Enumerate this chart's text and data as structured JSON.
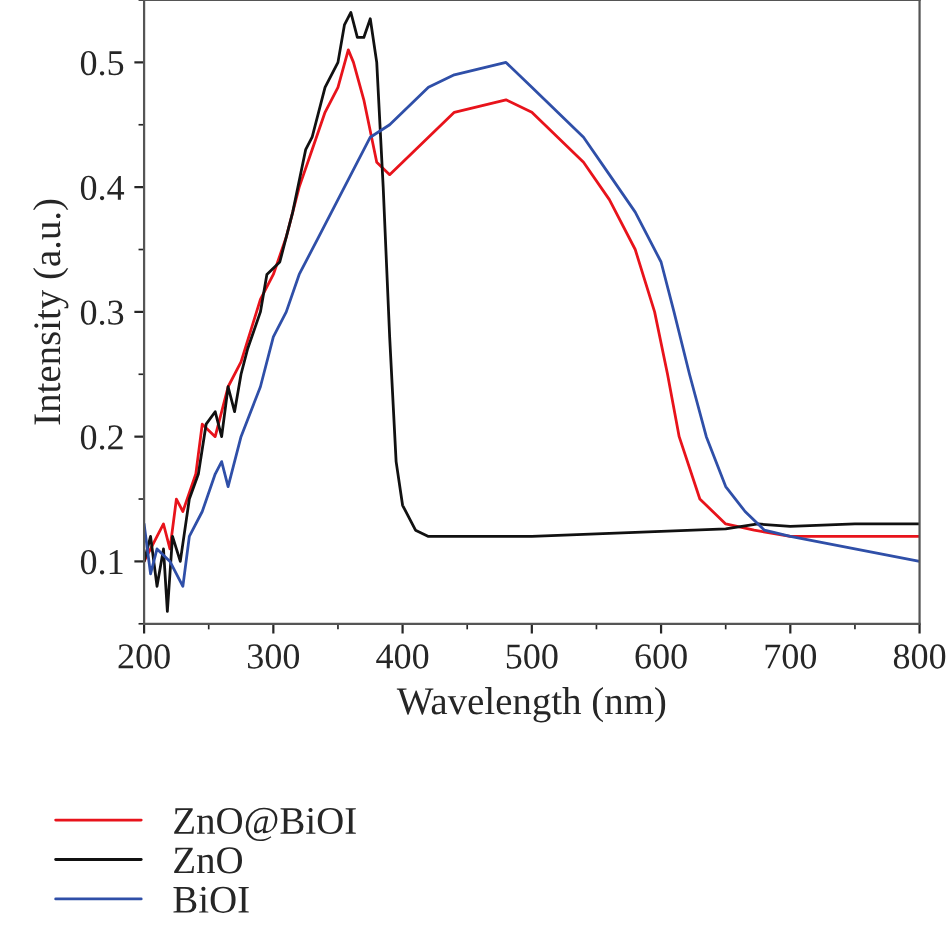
{
  "chart_data": {
    "type": "line",
    "xlabel": "Wavelength (nm)",
    "ylabel": "Intensity (a.u.)",
    "xlim": [
      200,
      800
    ],
    "xticks": [
      200,
      300,
      400,
      500,
      600,
      700,
      800
    ],
    "ylim": [
      0.05,
      0.55
    ],
    "yticks": [
      0.1,
      0.2,
      0.3,
      0.4,
      0.5
    ],
    "grid": false,
    "legend": "bottom left",
    "marker": "none",
    "line_style": "solid",
    "series": [
      {
        "name": "ZnO@BiOI",
        "color": "#e8131b",
        "x": [
          200,
          205,
          210,
          215,
          220,
          225,
          230,
          240,
          245,
          255,
          265,
          275,
          290,
          300,
          310,
          320,
          330,
          340,
          350,
          358,
          362,
          370,
          380,
          390,
          400,
          420,
          440,
          460,
          480,
          500,
          520,
          540,
          560,
          580,
          595,
          605,
          614,
          630,
          650,
          672,
          700,
          750,
          800
        ],
        "values": [
          0.1,
          0.11,
          0.12,
          0.13,
          0.11,
          0.15,
          0.14,
          0.17,
          0.21,
          0.2,
          0.24,
          0.26,
          0.31,
          0.33,
          0.36,
          0.4,
          0.43,
          0.46,
          0.48,
          0.51,
          0.5,
          0.47,
          0.42,
          0.41,
          0.42,
          0.44,
          0.46,
          0.465,
          0.47,
          0.46,
          0.44,
          0.42,
          0.39,
          0.35,
          0.3,
          0.25,
          0.2,
          0.15,
          0.13,
          0.125,
          0.12,
          0.12,
          0.12
        ]
      },
      {
        "name": "ZnO",
        "color": "#111111",
        "x": [
          200,
          205,
          210,
          215,
          218,
          222,
          228,
          235,
          242,
          248,
          255,
          260,
          265,
          270,
          275,
          280,
          290,
          295,
          305,
          315,
          325,
          330,
          340,
          350,
          355,
          360,
          365,
          370,
          375,
          380,
          385,
          390,
          395,
          400,
          410,
          420,
          450,
          500,
          550,
          600,
          650,
          675,
          700,
          750,
          800
        ],
        "values": [
          0.1,
          0.12,
          0.08,
          0.11,
          0.06,
          0.12,
          0.1,
          0.15,
          0.17,
          0.21,
          0.22,
          0.2,
          0.24,
          0.22,
          0.25,
          0.27,
          0.3,
          0.33,
          0.34,
          0.38,
          0.43,
          0.44,
          0.48,
          0.5,
          0.53,
          0.54,
          0.52,
          0.52,
          0.535,
          0.5,
          0.4,
          0.28,
          0.18,
          0.145,
          0.125,
          0.12,
          0.12,
          0.12,
          0.122,
          0.124,
          0.126,
          0.13,
          0.128,
          0.13,
          0.13
        ]
      },
      {
        "name": "BiOI",
        "color": "#2f4fa8",
        "x": [
          200,
          205,
          210,
          220,
          230,
          235,
          245,
          255,
          260,
          265,
          275,
          290,
          300,
          310,
          320,
          335,
          345,
          360,
          375,
          390,
          400,
          420,
          440,
          460,
          480,
          500,
          520,
          540,
          560,
          580,
          600,
          610,
          622,
          635,
          650,
          665,
          680,
          700,
          750,
          800
        ],
        "values": [
          0.13,
          0.09,
          0.11,
          0.1,
          0.08,
          0.12,
          0.14,
          0.17,
          0.18,
          0.16,
          0.2,
          0.24,
          0.28,
          0.3,
          0.33,
          0.36,
          0.38,
          0.41,
          0.44,
          0.45,
          0.46,
          0.48,
          0.49,
          0.495,
          0.5,
          0.48,
          0.46,
          0.44,
          0.41,
          0.38,
          0.34,
          0.3,
          0.25,
          0.2,
          0.16,
          0.14,
          0.125,
          0.12,
          0.11,
          0.1
        ]
      }
    ]
  }
}
